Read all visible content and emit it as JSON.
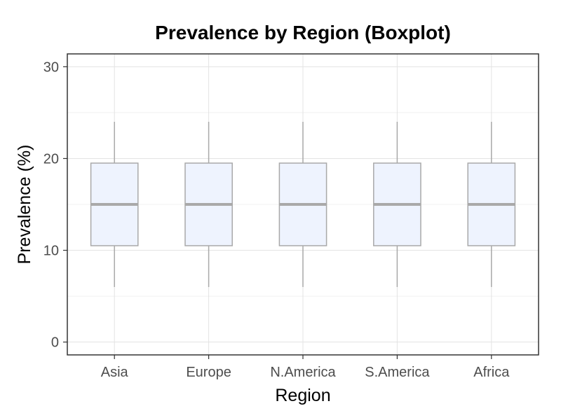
{
  "chart_data": {
    "type": "boxplot",
    "title": "Prevalence by Region (Boxplot)",
    "xlabel": "Region",
    "ylabel": "Prevalence (%)",
    "categories": [
      "Asia",
      "Europe",
      "N.America",
      "S.America",
      "Africa"
    ],
    "boxes": [
      {
        "category": "Asia",
        "min": 6,
        "q1": 10.5,
        "median": 15,
        "q3": 19.5,
        "max": 24
      },
      {
        "category": "Europe",
        "min": 6,
        "q1": 10.5,
        "median": 15,
        "q3": 19.5,
        "max": 24
      },
      {
        "category": "N.America",
        "min": 6,
        "q1": 10.5,
        "median": 15,
        "q3": 19.5,
        "max": 24
      },
      {
        "category": "S.America",
        "min": 6,
        "q1": 10.5,
        "median": 15,
        "q3": 19.5,
        "max": 24
      },
      {
        "category": "Africa",
        "min": 6,
        "q1": 10.5,
        "median": 15,
        "q3": 19.5,
        "max": 24
      }
    ],
    "ylim": [
      -1.4,
      31.4
    ],
    "yticks": [
      0,
      10,
      20,
      30
    ],
    "grid": true,
    "colors": {
      "box_fill": "#eef3fe",
      "box_stroke": "#a9a9a9",
      "median": "#a9a9a9",
      "grid": "#e3e3e3"
    }
  }
}
